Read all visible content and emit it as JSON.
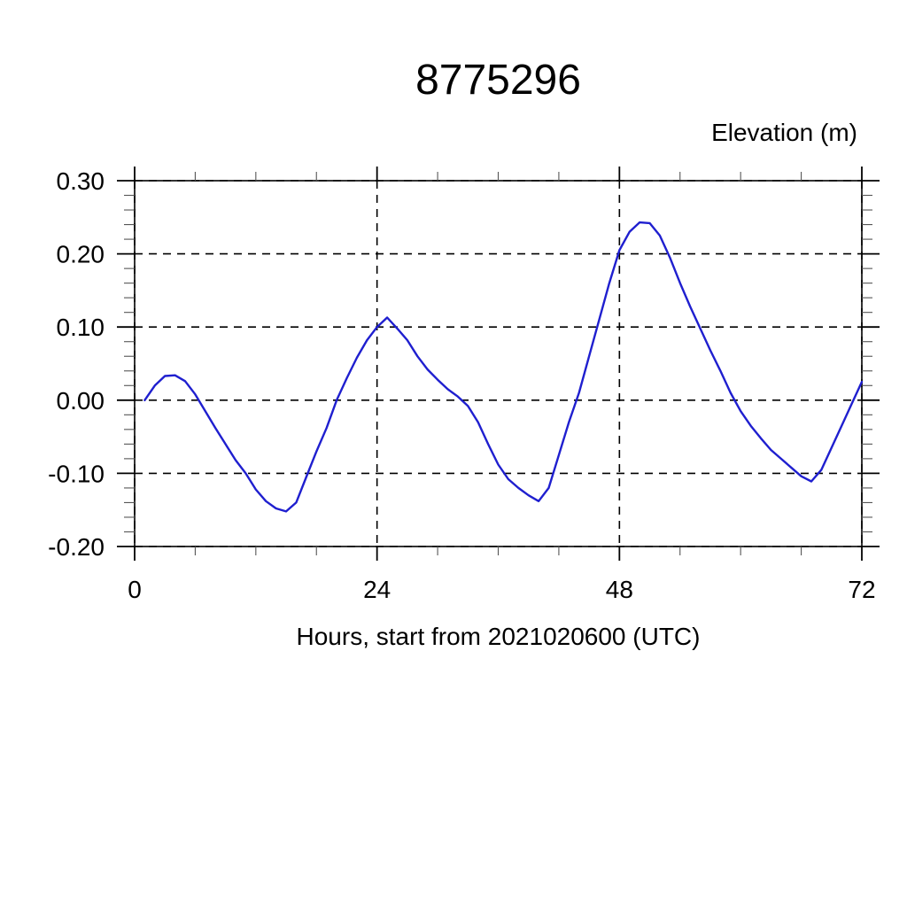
{
  "title": "8775296",
  "y_axis_title": "Elevation (m)",
  "x_axis_title": "Hours, start from 2021020600 (UTC)",
  "chart_data": {
    "type": "line",
    "title": "8775296",
    "xlabel": "Hours, start from 2021020600 (UTC)",
    "ylabel": "Elevation (m)",
    "xlim": [
      0,
      72
    ],
    "ylim": [
      -0.2,
      0.3
    ],
    "x_major_ticks": [
      0,
      24,
      48,
      72
    ],
    "x_tick_labels": [
      "0",
      "24",
      "48",
      "72"
    ],
    "x_minor_interval": 6,
    "y_major_ticks": [
      -0.2,
      -0.1,
      0.0,
      0.1,
      0.2,
      0.3
    ],
    "y_tick_labels": [
      "-0.20",
      "-0.10",
      "0.00",
      "0.10",
      "0.20",
      "0.30"
    ],
    "y_minor_interval": 0.02,
    "grid": "dashed lines at major ticks, full frame box, ticks outward on all four sides",
    "line_color": "#1f1fcf",
    "frame_color": "#000000",
    "series": [
      {
        "name": "elevation",
        "x": [
          1,
          2,
          3,
          4,
          5,
          6,
          7,
          8,
          9,
          10,
          11,
          12,
          13,
          14,
          15,
          16,
          17,
          18,
          19,
          20,
          21,
          22,
          23,
          24,
          25,
          26,
          27,
          28,
          29,
          30,
          31,
          32,
          33,
          34,
          35,
          36,
          37,
          38,
          39,
          40,
          41,
          42,
          43,
          44,
          45,
          46,
          47,
          48,
          49,
          50,
          51,
          52,
          53,
          54,
          55,
          56,
          57,
          58,
          59,
          60,
          61,
          62,
          63,
          64,
          65,
          66,
          67,
          68,
          69,
          70,
          71,
          72
        ],
        "y": [
          0.0,
          0.02,
          0.033,
          0.034,
          0.026,
          0.008,
          -0.015,
          -0.038,
          -0.06,
          -0.082,
          -0.1,
          -0.122,
          -0.138,
          -0.148,
          -0.152,
          -0.14,
          -0.105,
          -0.07,
          -0.038,
          0.0,
          0.03,
          0.058,
          0.082,
          0.1,
          0.113,
          0.098,
          0.082,
          0.06,
          0.042,
          0.028,
          0.015,
          0.005,
          -0.008,
          -0.03,
          -0.06,
          -0.088,
          -0.108,
          -0.12,
          -0.13,
          -0.138,
          -0.12,
          -0.075,
          -0.03,
          0.01,
          0.06,
          0.11,
          0.16,
          0.205,
          0.23,
          0.243,
          0.242,
          0.225,
          0.195,
          0.16,
          0.128,
          0.098,
          0.068,
          0.04,
          0.01,
          -0.015,
          -0.035,
          -0.052,
          -0.068,
          -0.08,
          -0.092,
          -0.104,
          -0.111,
          -0.095,
          -0.065,
          -0.035,
          -0.005,
          0.025
        ]
      }
    ]
  }
}
